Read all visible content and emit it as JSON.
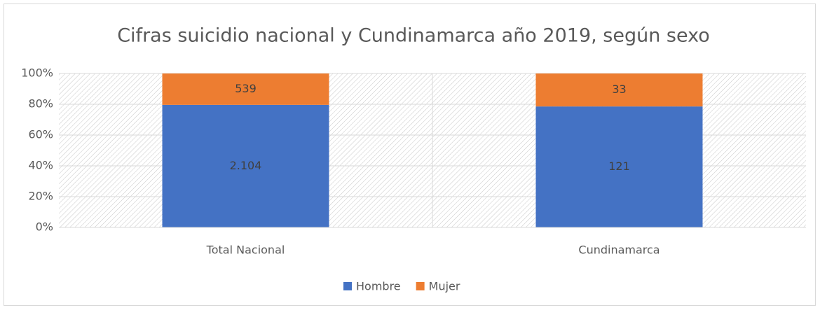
{
  "chart_data": {
    "type": "stacked_percent_bar",
    "title": "Cifras suicidio nacional y Cundinamarca año 2019, según sexo",
    "categories": [
      "Total Nacional",
      "Cundinamarca"
    ],
    "series": [
      {
        "name": "Hombre",
        "color": "#4472c4",
        "values": [
          2104,
          121
        ],
        "value_labels": [
          "2.104",
          "121"
        ]
      },
      {
        "name": "Mujer",
        "color": "#ed7d31",
        "values": [
          539,
          33
        ],
        "value_labels": [
          "539",
          "33"
        ]
      }
    ],
    "ylim": [
      0,
      100
    ],
    "yticks": [
      {
        "value": 0,
        "label": "0%"
      },
      {
        "value": 20,
        "label": "20%"
      },
      {
        "value": 40,
        "label": "40%"
      },
      {
        "value": 60,
        "label": "60%"
      },
      {
        "value": 80,
        "label": "80%"
      },
      {
        "value": 100,
        "label": "100%"
      }
    ],
    "grid": true,
    "legend": "bottom"
  }
}
